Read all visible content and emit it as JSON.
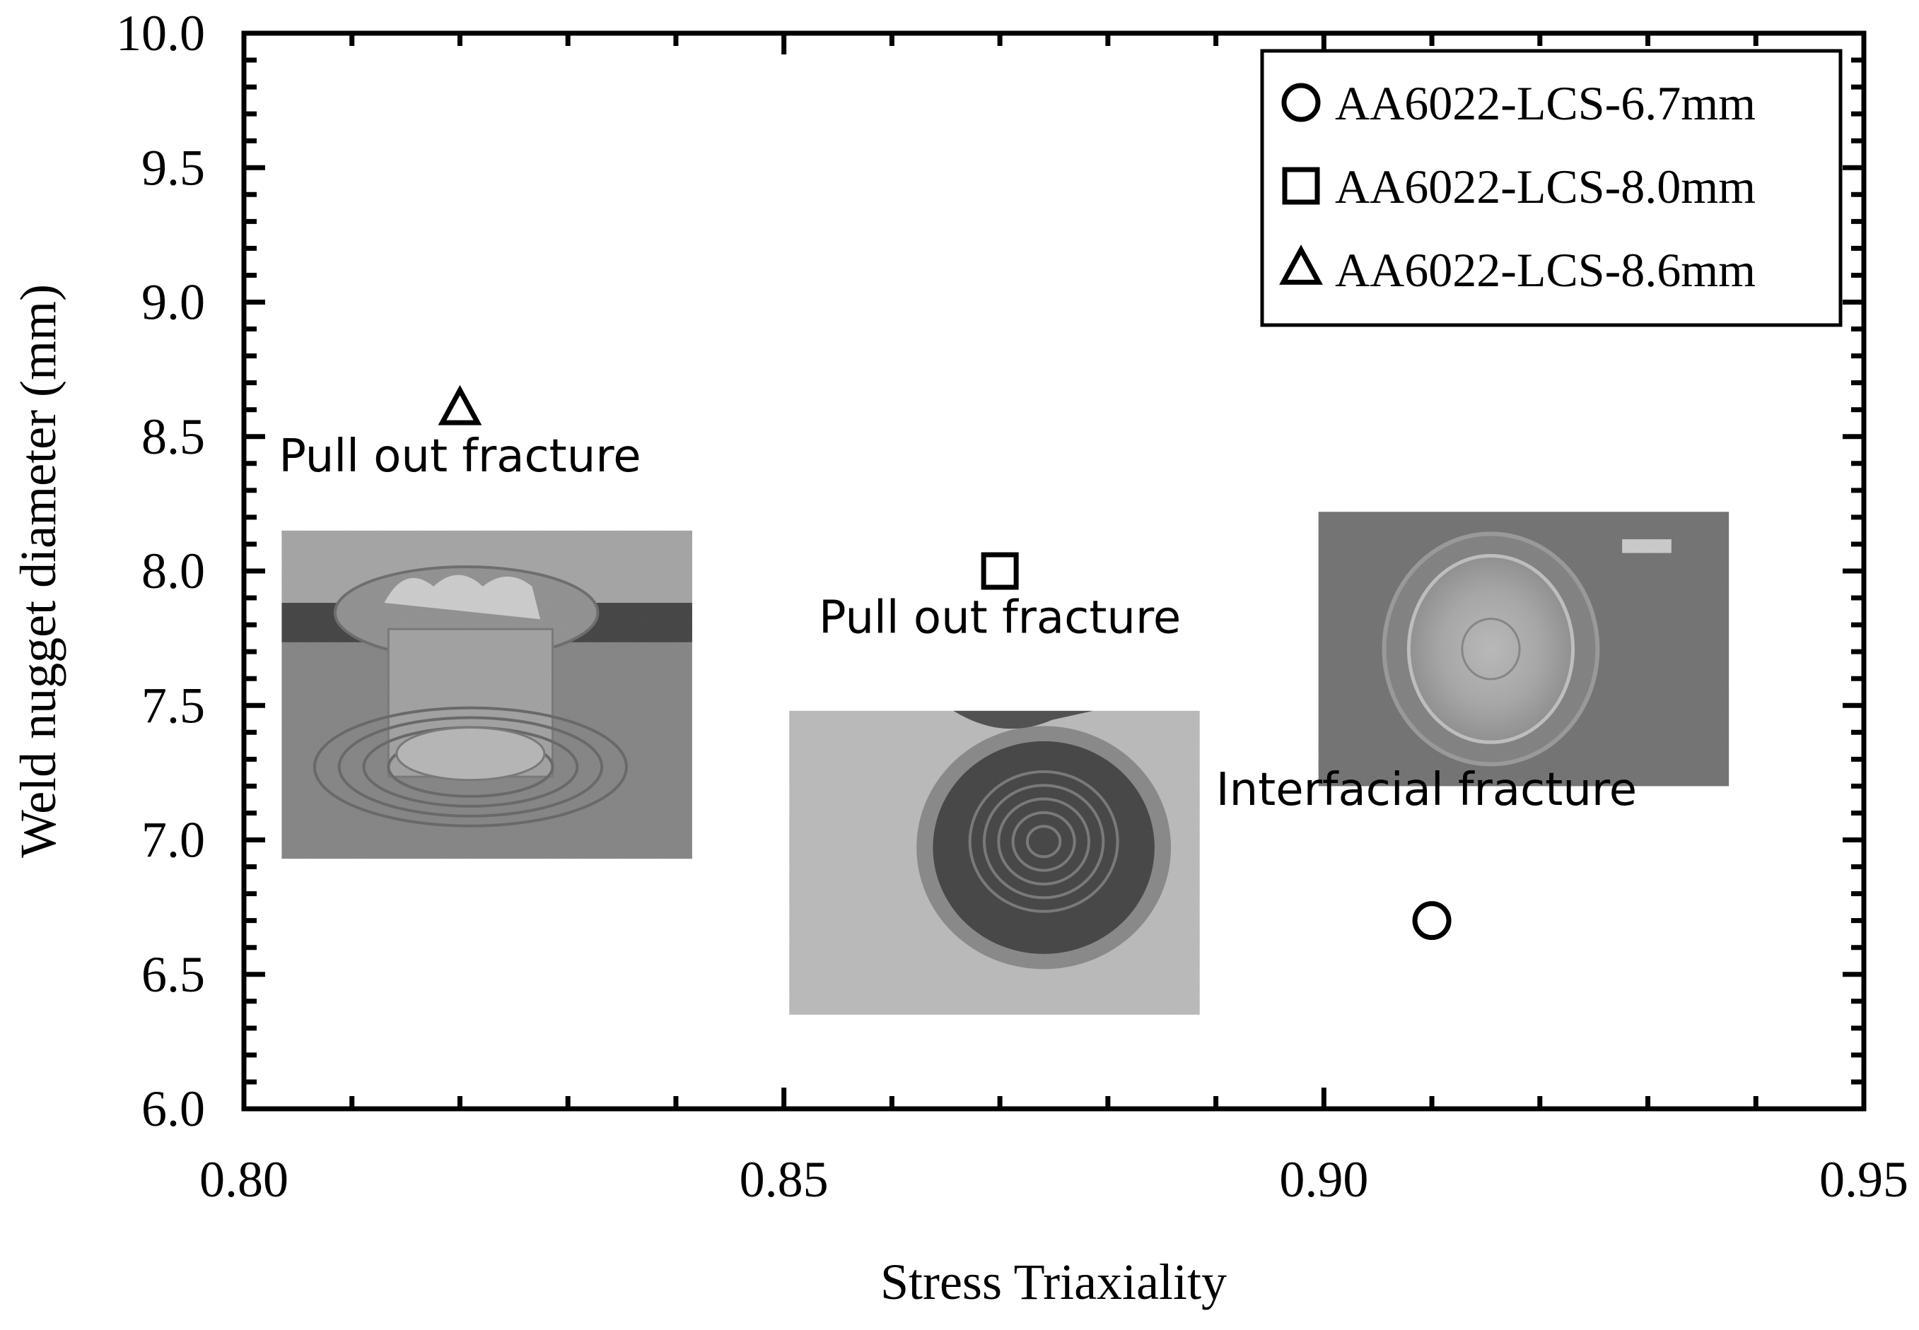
{
  "chart_data": {
    "type": "scatter",
    "xlabel": "Stress Triaxiality",
    "ylabel": "Weld nugget diameter (mm)",
    "xlim": [
      0.8,
      0.95
    ],
    "ylim": [
      6.0,
      10.0
    ],
    "x_ticks": [
      "0.80",
      "0.85",
      "0.90",
      "0.95"
    ],
    "y_ticks": [
      "6.0",
      "6.5",
      "7.0",
      "7.5",
      "8.0",
      "8.5",
      "9.0",
      "9.5",
      "10.0"
    ],
    "x_minor_step": 0.01,
    "y_minor_step": 0.1,
    "legend_position": "top-right",
    "series": [
      {
        "name": "AA6022-LCS-6.7mm",
        "marker": "circle",
        "x": [
          0.91
        ],
        "y": [
          6.7
        ]
      },
      {
        "name": "AA6022-LCS-8.0mm",
        "marker": "square",
        "x": [
          0.87
        ],
        "y": [
          8.0
        ]
      },
      {
        "name": "AA6022-LCS-8.6mm",
        "marker": "triangle",
        "x": [
          0.82
        ],
        "y": [
          8.6
        ]
      }
    ],
    "annotations": [
      {
        "text": "Pull out fracture",
        "x": 0.82,
        "y": 8.37
      },
      {
        "text": "Pull out fracture",
        "x": 0.87,
        "y": 7.77
      },
      {
        "text": "Interfacial fracture",
        "x": 0.9095,
        "y": 7.13
      }
    ],
    "photos": [
      {
        "name": "pull-out-fracture-photo-1",
        "x0": 0.8035,
        "x1": 0.8415,
        "y0": 6.93,
        "y1": 8.15
      },
      {
        "name": "pull-out-fracture-photo-2",
        "x0": 0.8505,
        "x1": 0.8885,
        "y0": 6.35,
        "y1": 7.48
      },
      {
        "name": "interfacial-fracture-photo",
        "x0": 0.8995,
        "x1": 0.9375,
        "y0": 7.2,
        "y1": 8.22
      }
    ],
    "colors": {
      "axis": "#000000",
      "marker": "#000000",
      "background": "#ffffff"
    }
  }
}
